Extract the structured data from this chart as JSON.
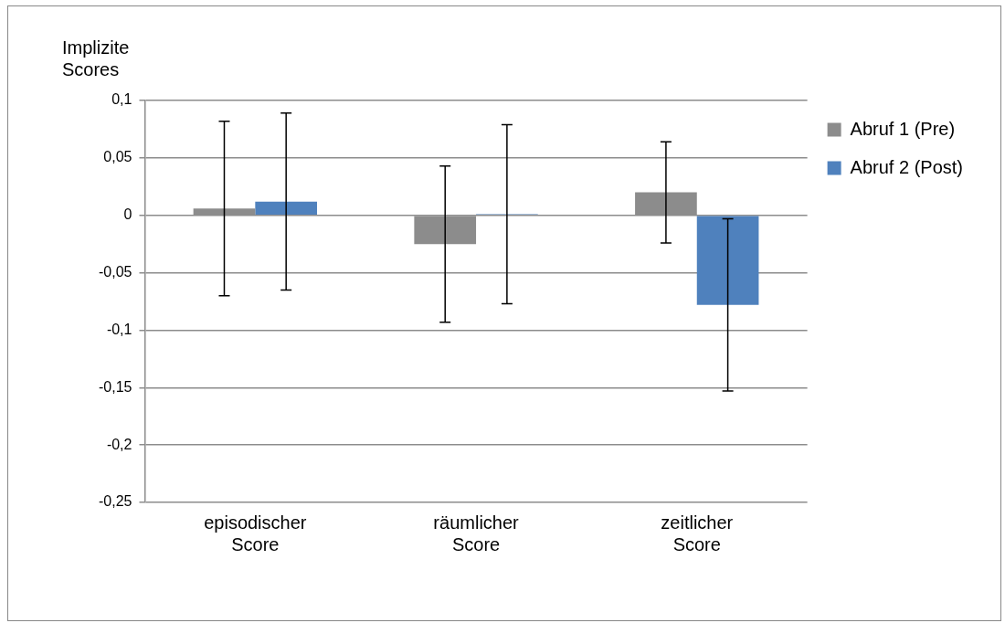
{
  "chart_data": {
    "type": "bar",
    "ylabel": "Implizite Scores",
    "categories": [
      "episodischer Score",
      "räumlicher Score",
      "zeitlicher Score"
    ],
    "series": [
      {
        "name": "Abruf 1 (Pre)",
        "color": "#8c8c8c",
        "values": [
          0.006,
          -0.025,
          0.02
        ],
        "errors": [
          0.076,
          0.068,
          0.044
        ]
      },
      {
        "name": "Abruf 2 (Post)",
        "color": "#4f81bd",
        "values": [
          0.012,
          0.001,
          -0.078
        ],
        "errors": [
          0.077,
          0.078,
          0.075
        ]
      }
    ],
    "ylim": [
      -0.25,
      0.1
    ],
    "yticks": [
      {
        "value": -0.25,
        "label": "-0,25"
      },
      {
        "value": -0.2,
        "label": "-0,2"
      },
      {
        "value": -0.15,
        "label": "-0,15"
      },
      {
        "value": -0.1,
        "label": "-0,1"
      },
      {
        "value": -0.05,
        "label": "-0,05"
      },
      0,
      {
        "value": 0.05,
        "label": "0,05"
      },
      {
        "value": 0.1,
        "label": "0,1"
      }
    ],
    "grid": "y",
    "legend": "right"
  }
}
